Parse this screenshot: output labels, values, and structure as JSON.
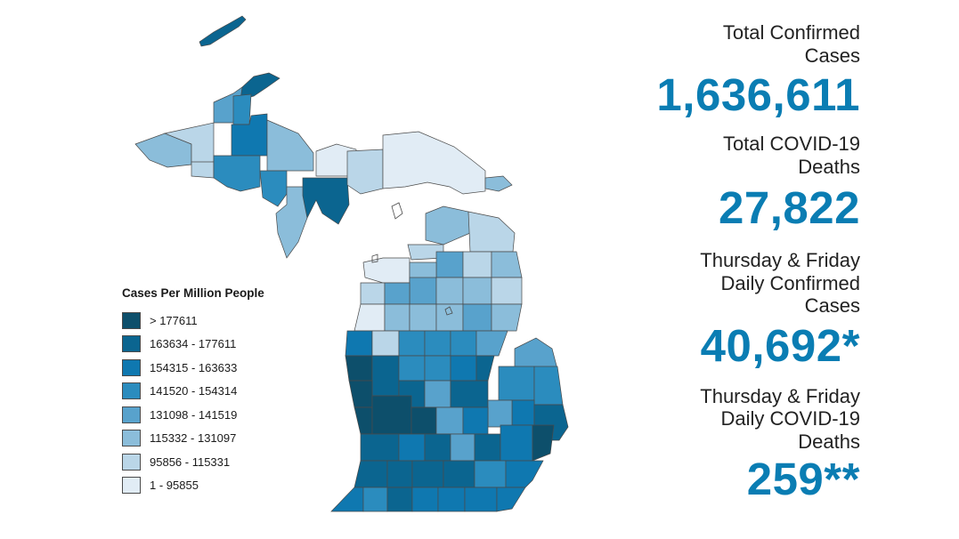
{
  "legend": {
    "title": "Cases Per Million People",
    "items": [
      {
        "label": "> 177611",
        "color": "#0d4f6b"
      },
      {
        "label": "163634 - 177611",
        "color": "#0b6590"
      },
      {
        "label": "154315 - 163633",
        "color": "#0f78b0"
      },
      {
        "label": "141520 - 154314",
        "color": "#2b8cbe"
      },
      {
        "label": "131098 - 141519",
        "color": "#58a2cc"
      },
      {
        "label": "115332 - 131097",
        "color": "#8bbdda"
      },
      {
        "label": "95856 - 115331",
        "color": "#bad6e8"
      },
      {
        "label": "1 - 95855",
        "color": "#e1ecf5"
      }
    ]
  },
  "stats": {
    "total_cases_label_line1": "Total Confirmed",
    "total_cases_label_line2": "Cases",
    "total_cases_value": "1,636,611",
    "total_deaths_label_line1": "Total COVID-19",
    "total_deaths_label_line2": "Deaths",
    "total_deaths_value": "27,822",
    "daily_cases_label_line1": "Thursday & Friday",
    "daily_cases_label_line2": "Daily Confirmed",
    "daily_cases_label_line3": "Cases",
    "daily_cases_value": "40,692*",
    "daily_deaths_label_line1": "Thursday & Friday",
    "daily_deaths_label_line2": "Daily COVID-19",
    "daily_deaths_label_line3": "Deaths",
    "daily_deaths_value": "259**"
  },
  "map": {
    "colors": {
      "c1": "#0d4f6b",
      "c2": "#0b6590",
      "c3": "#0f78b0",
      "c4": "#2b8cbe",
      "c5": "#58a2cc",
      "c6": "#8bbdda",
      "c7": "#bad6e8",
      "c8": "#e1ecf5",
      "border": "#4a4a4a"
    }
  }
}
